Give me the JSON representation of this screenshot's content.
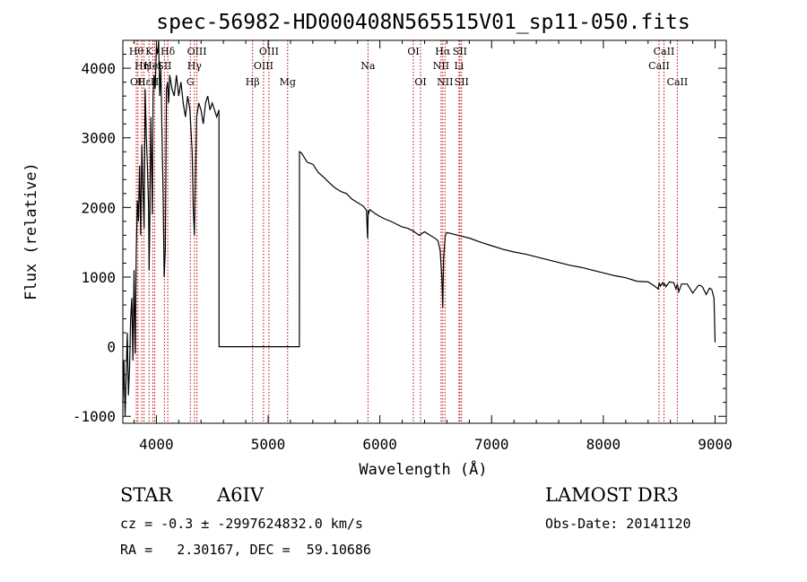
{
  "chart_data": {
    "type": "line",
    "title": "spec-56982-HD000408N565515V01_sp11-050.fits",
    "xlabel": "Wavelength (Å)",
    "ylabel": "Flux (relative)",
    "xlim": [
      3700,
      9100
    ],
    "ylim": [
      -1100,
      4400
    ],
    "xticks": [
      4000,
      5000,
      6000,
      7000,
      8000,
      9000
    ],
    "yticks": [
      -1000,
      0,
      1000,
      2000,
      3000,
      4000
    ],
    "series": [
      {
        "name": "spectrum",
        "x": [
          3700,
          3710,
          3720,
          3730,
          3740,
          3750,
          3760,
          3770,
          3780,
          3790,
          3800,
          3810,
          3820,
          3830,
          3840,
          3850,
          3860,
          3870,
          3880,
          3890,
          3900,
          3910,
          3920,
          3930,
          3935,
          3940,
          3950,
          3960,
          3965,
          3970,
          3980,
          3990,
          4000,
          4010,
          4020,
          4030,
          4040,
          4050,
          4060,
          4070,
          4080,
          4090,
          4100,
          4110,
          4120,
          4140,
          4160,
          4180,
          4200,
          4220,
          4240,
          4260,
          4280,
          4300,
          4320,
          4330,
          4340,
          4350,
          4360,
          4380,
          4400,
          4420,
          4440,
          4460,
          4480,
          4500,
          4520,
          4540,
          4560,
          4561,
          4600,
          4700,
          4800,
          4900,
          5000,
          5100,
          5200,
          5280,
          5281,
          5300,
          5350,
          5400,
          5450,
          5500,
          5550,
          5600,
          5650,
          5700,
          5750,
          5800,
          5850,
          5880,
          5890,
          5895,
          5900,
          5910,
          5950,
          6000,
          6050,
          6100,
          6150,
          6200,
          6250,
          6300,
          6350,
          6400,
          6450,
          6500,
          6520,
          6540,
          6555,
          6563,
          6570,
          6585,
          6600,
          6650,
          6700,
          6750,
          6800,
          6900,
          7000,
          7100,
          7200,
          7300,
          7400,
          7500,
          7600,
          7700,
          7800,
          7900,
          8000,
          8100,
          8200,
          8300,
          8400,
          8450,
          8490,
          8500,
          8510,
          8530,
          8540,
          8550,
          8560,
          8590,
          8630,
          8650,
          8662,
          8675,
          8700,
          8750,
          8800,
          8850,
          8870,
          8890,
          8920,
          8950,
          8970,
          8990,
          9000
        ],
        "values": [
          -800,
          -200,
          -1000,
          -400,
          200,
          -700,
          -300,
          400,
          700,
          -200,
          1100,
          -100,
          1400,
          2100,
          1800,
          2600,
          1600,
          2900,
          2300,
          1700,
          3700,
          3000,
          2600,
          2000,
          1100,
          1600,
          3300,
          2400,
          1900,
          3600,
          3900,
          3700,
          4300,
          4200,
          4400,
          3600,
          4000,
          3100,
          2200,
          1000,
          1400,
          3700,
          3800,
          3500,
          3900,
          3700,
          3600,
          3900,
          3600,
          3800,
          3500,
          3300,
          3600,
          3400,
          2800,
          2000,
          1600,
          2400,
          3300,
          3500,
          3400,
          3200,
          3500,
          3600,
          3400,
          3500,
          3400,
          3300,
          3400,
          0,
          0,
          0,
          0,
          0,
          0,
          0,
          0,
          0,
          2800,
          2780,
          2650,
          2620,
          2500,
          2430,
          2350,
          2280,
          2230,
          2200,
          2120,
          2070,
          2020,
          1960,
          1560,
          1950,
          1920,
          1970,
          1920,
          1870,
          1830,
          1800,
          1760,
          1720,
          1700,
          1660,
          1600,
          1650,
          1600,
          1550,
          1520,
          1380,
          980,
          560,
          1260,
          1600,
          1640,
          1620,
          1600,
          1580,
          1560,
          1500,
          1450,
          1400,
          1360,
          1330,
          1290,
          1250,
          1210,
          1170,
          1140,
          1100,
          1060,
          1020,
          990,
          940,
          930,
          880,
          830,
          920,
          870,
          920,
          880,
          900,
          860,
          930,
          920,
          830,
          900,
          790,
          900,
          900,
          770,
          880,
          880,
          850,
          750,
          840,
          820,
          700,
          60
        ]
      }
    ],
    "lines": [
      {
        "wl": 3820,
        "label": "Hθ",
        "row": 1
      },
      {
        "wl": 3835,
        "label": "OII",
        "row": 3
      },
      {
        "wl": 3869,
        "label": "Hη",
        "row": 2
      },
      {
        "wl": 3889,
        "label": "Hε",
        "row": 3
      },
      {
        "wl": 3934,
        "label": "K",
        "row": 1
      },
      {
        "wl": 3969,
        "label": "HeI",
        "row": 2
      },
      {
        "wl": 3985,
        "label": "H",
        "row": 3
      },
      {
        "wl": 4072,
        "label": "SII",
        "row": 2
      },
      {
        "wl": 4102,
        "label": "Hδ",
        "row": 1
      },
      {
        "wl": 4304,
        "label": "G",
        "row": 3
      },
      {
        "wl": 4340,
        "label": "Hγ",
        "row": 2
      },
      {
        "wl": 4363,
        "label": "OIII",
        "row": 1
      },
      {
        "wl": 4861,
        "label": "Hβ",
        "row": 3
      },
      {
        "wl": 4959,
        "label": "OIII",
        "row": 2
      },
      {
        "wl": 5007,
        "label": "OIII",
        "row": 1
      },
      {
        "wl": 5175,
        "label": "Mg",
        "row": 3
      },
      {
        "wl": 5894,
        "label": "Na",
        "row": 2
      },
      {
        "wl": 6300,
        "label": "OI",
        "row": 1
      },
      {
        "wl": 6364,
        "label": "OI",
        "row": 3
      },
      {
        "wl": 6548,
        "label": "NII",
        "row": 2
      },
      {
        "wl": 6563,
        "label": "Hα",
        "row": 1
      },
      {
        "wl": 6583,
        "label": "NII",
        "row": 3
      },
      {
        "wl": 6708,
        "label": "Li",
        "row": 2
      },
      {
        "wl": 6716,
        "label": "SII",
        "row": 1
      },
      {
        "wl": 6731,
        "label": "SII",
        "row": 3
      },
      {
        "wl": 8498,
        "label": "CaII",
        "row": 2
      },
      {
        "wl": 8542,
        "label": "CaII",
        "row": 1
      },
      {
        "wl": 8662,
        "label": "CaII",
        "row": 3
      }
    ]
  },
  "info": {
    "object_class": "STAR",
    "subclass": "A6IV",
    "survey": "LAMOST DR3",
    "cz_line": "cz = -0.3 ± -2997624832.0 km/s",
    "obs_date": "Obs-Date: 20141120",
    "coords": "RA =   2.30167, DEC =  59.10686"
  },
  "colors": {
    "spectrum": "#000000",
    "line_marker": "#c00000"
  }
}
